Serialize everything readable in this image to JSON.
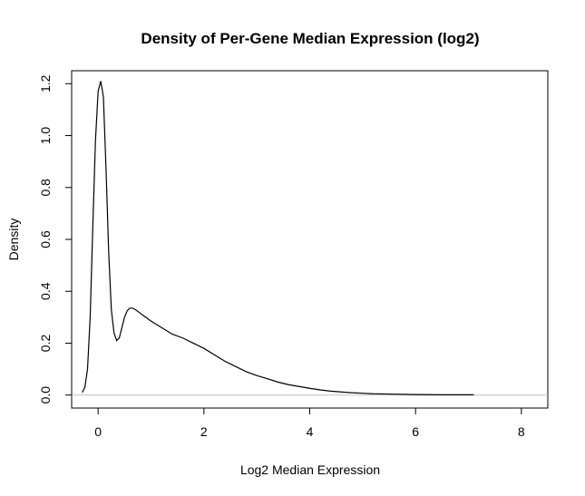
{
  "chart_data": {
    "type": "line",
    "title": "Density of Per-Gene Median Expression (log2)",
    "xlabel": "Log2 Median Expression",
    "ylabel": "Density",
    "xlim": [
      -0.5,
      8.5
    ],
    "ylim": [
      -0.05,
      1.25
    ],
    "x_ticks": [
      0,
      2,
      4,
      6,
      8
    ],
    "y_ticks": [
      0.0,
      0.2,
      0.4,
      0.6,
      0.8,
      1.0,
      1.2
    ],
    "x_tick_labels": [
      "0",
      "2",
      "4",
      "6",
      "8"
    ],
    "y_tick_labels": [
      "0.0",
      "0.2",
      "0.4",
      "0.6",
      "0.8",
      "1.0",
      "1.2"
    ],
    "grid": false,
    "baseline": 0,
    "baseline_color": "#c0c0c0",
    "line_color": "#000000",
    "series": [
      {
        "x": [
          -0.3,
          -0.25,
          -0.2,
          -0.15,
          -0.1,
          -0.05,
          0.0,
          0.05,
          0.1,
          0.15,
          0.2,
          0.25,
          0.3,
          0.35,
          0.4,
          0.45,
          0.5,
          0.55,
          0.6,
          0.65,
          0.7,
          0.8,
          0.9,
          1.0,
          1.2,
          1.4,
          1.6,
          1.8,
          2.0,
          2.2,
          2.4,
          2.6,
          2.8,
          3.0,
          3.2,
          3.4,
          3.6,
          3.8,
          4.0,
          4.2,
          4.4,
          4.6,
          4.8,
          5.0,
          5.2,
          5.5,
          6.0,
          6.5,
          7.1
        ],
        "y": [
          0.01,
          0.03,
          0.1,
          0.3,
          0.65,
          0.98,
          1.17,
          1.21,
          1.15,
          0.87,
          0.55,
          0.33,
          0.24,
          0.21,
          0.22,
          0.26,
          0.3,
          0.325,
          0.335,
          0.335,
          0.33,
          0.315,
          0.3,
          0.285,
          0.26,
          0.235,
          0.22,
          0.2,
          0.18,
          0.155,
          0.13,
          0.11,
          0.09,
          0.075,
          0.063,
          0.05,
          0.04,
          0.033,
          0.026,
          0.02,
          0.015,
          0.012,
          0.009,
          0.007,
          0.005,
          0.004,
          0.002,
          0.001,
          0.001
        ]
      }
    ]
  }
}
